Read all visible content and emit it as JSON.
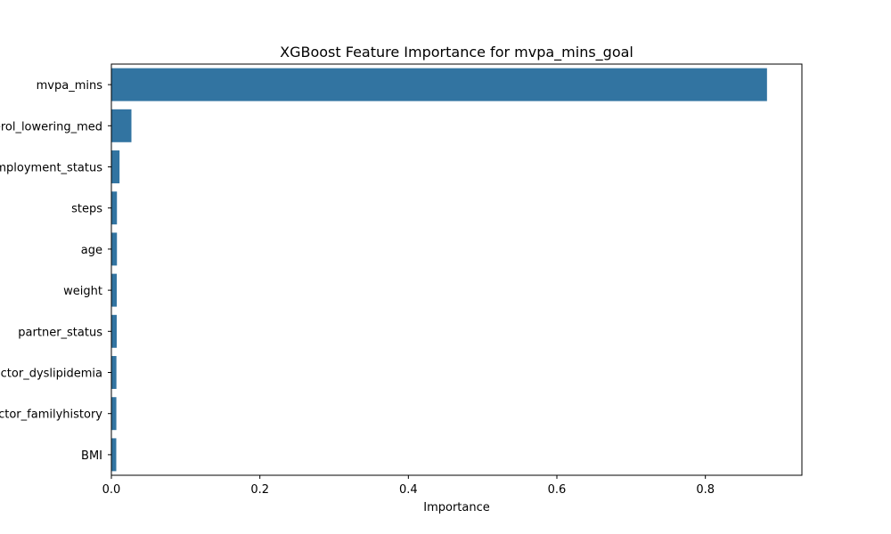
{
  "chart_data": {
    "type": "bar",
    "orientation": "horizontal",
    "title": "XGBoost Feature Importance for mvpa_mins_goal",
    "xlabel": "Importance",
    "ylabel": "",
    "categories": [
      "mvpa_mins",
      "cholesterol_lowering_med",
      "employment_status",
      "steps",
      "age",
      "weight",
      "partner_status",
      "risk_factor_dyslipidemia",
      "risk_factor_familyhistory",
      "BMI"
    ],
    "values": [
      0.883,
      0.027,
      0.011,
      0.0075,
      0.0075,
      0.0073,
      0.0072,
      0.0068,
      0.0067,
      0.0066
    ],
    "xlim": [
      0,
      0.93
    ],
    "xticks": [
      0.0,
      0.2,
      0.4,
      0.6,
      0.8
    ],
    "xtick_labels": [
      "0.0",
      "0.2",
      "0.4",
      "0.6",
      "0.8"
    ],
    "bar_color": "#3274a1",
    "grid": false
  }
}
